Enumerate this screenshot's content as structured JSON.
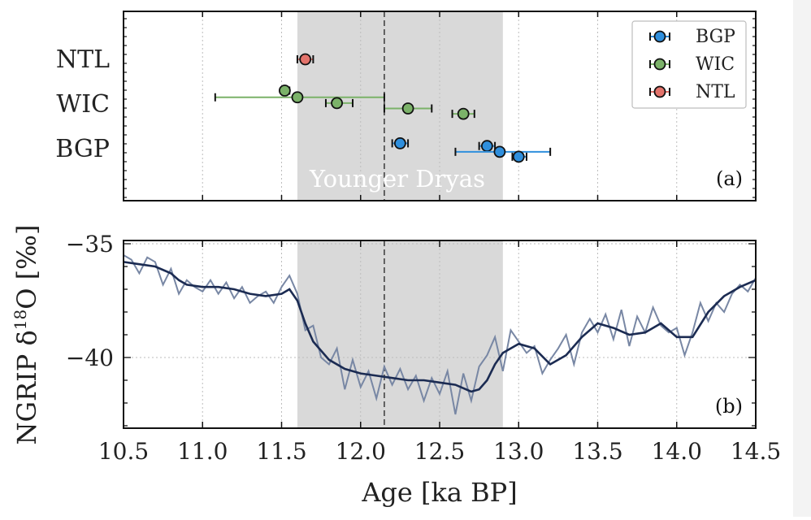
{
  "chart_data": [
    {
      "panel": "a",
      "type": "scatter",
      "panel_label": "(a)",
      "xlim": [
        10.5,
        14.5
      ],
      "yticks": [
        "NTL",
        "WIC",
        "BGP"
      ],
      "shaded_region": {
        "x0": 11.6,
        "x1": 12.9,
        "label": "Younger Dryas"
      },
      "vline": 12.15,
      "grid": "x-dotted",
      "legend_position": "top-right",
      "series": [
        {
          "name": "BGP",
          "color": "#2f8fdd",
          "level": 1,
          "points": [
            {
              "x": 12.25,
              "dy": 0.12,
              "xerr_lo": 12.2,
              "xerr_hi": 12.3
            },
            {
              "x": 12.8,
              "dy": 0.06,
              "xerr_lo": 12.75,
              "xerr_hi": 12.85
            },
            {
              "x": 12.88,
              "dy": -0.07,
              "xerr_lo": 12.6,
              "xerr_hi": 13.2
            },
            {
              "x": 13.0,
              "dy": -0.18,
              "xerr_lo": 12.96,
              "xerr_hi": 13.05
            }
          ]
        },
        {
          "name": "WIC",
          "color": "#7bb269",
          "level": 2,
          "points": [
            {
              "x": 11.52,
              "dy": 0.3,
              "xerr_lo": 11.5,
              "xerr_hi": 11.55
            },
            {
              "x": 11.6,
              "dy": 0.15,
              "xerr_lo": 11.08,
              "xerr_hi": 12.15
            },
            {
              "x": 11.85,
              "dy": 0.02,
              "xerr_lo": 11.78,
              "xerr_hi": 11.95
            },
            {
              "x": 12.3,
              "dy": -0.1,
              "xerr_lo": 12.15,
              "xerr_hi": 12.45
            },
            {
              "x": 12.65,
              "dy": -0.22,
              "xerr_lo": 12.58,
              "xerr_hi": 12.72
            }
          ]
        },
        {
          "name": "NTL",
          "color": "#e3736b",
          "level": 3,
          "points": [
            {
              "x": 11.65,
              "dy": 0.0,
              "xerr_lo": 11.6,
              "xerr_hi": 11.7
            }
          ]
        }
      ]
    },
    {
      "panel": "b",
      "type": "line",
      "panel_label": "(b)",
      "xlabel": "Age [ka BP]",
      "ylabel_prefix": "NGRIP δ",
      "ylabel_sup": "18",
      "ylabel_suffix": "O [‰]",
      "xlim": [
        10.5,
        14.5
      ],
      "ylim": [
        -43.0,
        -35.0
      ],
      "xticks": [
        "10.5",
        "11.0",
        "11.5",
        "12.0",
        "12.5",
        "13.0",
        "13.5",
        "14.0",
        "14.5"
      ],
      "yticks": [
        "−35",
        "−40"
      ],
      "grid": "dotted",
      "shaded_region": {
        "x0": 11.6,
        "x1": 12.9
      },
      "vline": 12.15,
      "smooth": {
        "color": "#1b2b52",
        "x": [
          10.5,
          10.6,
          10.7,
          10.8,
          10.85,
          10.9,
          11.0,
          11.1,
          11.2,
          11.3,
          11.4,
          11.5,
          11.55,
          11.6,
          11.65,
          11.7,
          11.8,
          11.9,
          12.0,
          12.1,
          12.2,
          12.3,
          12.4,
          12.5,
          12.6,
          12.7,
          12.75,
          12.8,
          12.85,
          12.9,
          13.0,
          13.1,
          13.2,
          13.3,
          13.4,
          13.5,
          13.6,
          13.7,
          13.8,
          13.9,
          14.0,
          14.1,
          14.2,
          14.3,
          14.4,
          14.5
        ],
        "y": [
          -35.8,
          -35.9,
          -36.0,
          -36.3,
          -36.6,
          -36.8,
          -36.9,
          -36.9,
          -37.0,
          -37.2,
          -37.3,
          -37.2,
          -37.0,
          -37.5,
          -38.5,
          -39.3,
          -40.1,
          -40.5,
          -40.7,
          -40.8,
          -40.9,
          -41.0,
          -41.0,
          -41.1,
          -41.2,
          -41.5,
          -41.4,
          -41.0,
          -40.3,
          -39.8,
          -39.4,
          -39.6,
          -40.3,
          -39.9,
          -39.1,
          -38.5,
          -38.7,
          -39.0,
          -38.9,
          -38.5,
          -39.1,
          -39.1,
          -38.0,
          -37.3,
          -36.9,
          -36.6
        ]
      },
      "raw": {
        "color": "#7887a4",
        "x": [
          10.5,
          10.55,
          10.6,
          10.65,
          10.7,
          10.75,
          10.8,
          10.85,
          10.9,
          10.95,
          11.0,
          11.05,
          11.1,
          11.15,
          11.2,
          11.25,
          11.3,
          11.35,
          11.4,
          11.45,
          11.5,
          11.55,
          11.6,
          11.65,
          11.7,
          11.75,
          11.8,
          11.85,
          11.9,
          11.95,
          12.0,
          12.05,
          12.1,
          12.15,
          12.2,
          12.25,
          12.3,
          12.35,
          12.4,
          12.45,
          12.5,
          12.55,
          12.6,
          12.65,
          12.7,
          12.75,
          12.8,
          12.85,
          12.9,
          12.95,
          13.0,
          13.05,
          13.1,
          13.15,
          13.2,
          13.25,
          13.3,
          13.35,
          13.4,
          13.45,
          13.5,
          13.55,
          13.6,
          13.65,
          13.7,
          13.75,
          13.8,
          13.85,
          13.9,
          13.95,
          14.0,
          14.05,
          14.1,
          14.15,
          14.2,
          14.25,
          14.3,
          14.35,
          14.4,
          14.45,
          14.5
        ],
        "y": [
          -35.5,
          -35.7,
          -36.3,
          -35.6,
          -35.8,
          -36.8,
          -36.1,
          -37.2,
          -36.6,
          -36.9,
          -37.1,
          -36.6,
          -37.2,
          -36.7,
          -37.4,
          -36.9,
          -37.6,
          -37.3,
          -37.1,
          -37.6,
          -36.9,
          -36.4,
          -37.2,
          -38.8,
          -38.6,
          -40.0,
          -40.3,
          -39.6,
          -41.4,
          -40.1,
          -41.3,
          -40.6,
          -41.8,
          -40.4,
          -41.2,
          -40.5,
          -41.4,
          -40.8,
          -41.9,
          -40.9,
          -41.6,
          -40.6,
          -42.5,
          -40.7,
          -41.9,
          -40.4,
          -39.9,
          -39.1,
          -40.6,
          -38.8,
          -39.3,
          -39.8,
          -39.5,
          -40.7,
          -40.1,
          -39.6,
          -39.0,
          -40.3,
          -38.9,
          -38.3,
          -38.9,
          -38.1,
          -39.2,
          -37.9,
          -39.5,
          -38.2,
          -38.9,
          -37.8,
          -38.6,
          -38.9,
          -38.7,
          -39.9,
          -38.9,
          -37.6,
          -38.4,
          -37.6,
          -38.0,
          -37.2,
          -36.8,
          -37.1,
          -36.5
        ]
      }
    }
  ]
}
